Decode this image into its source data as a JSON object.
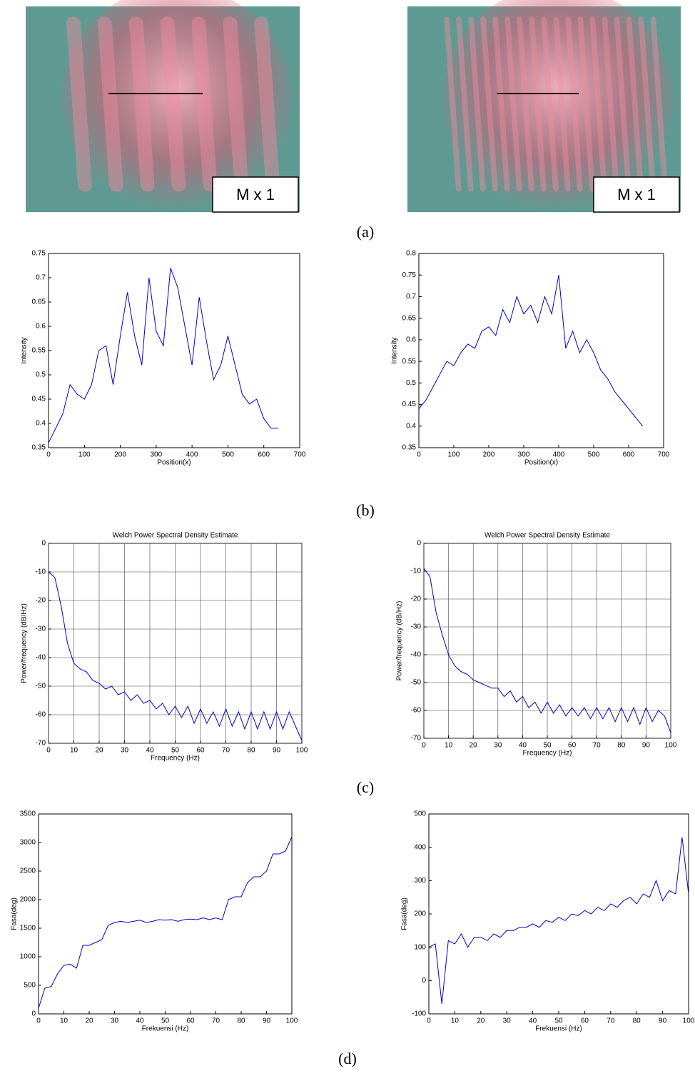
{
  "figure": {
    "panels": [
      {
        "label": "M x 1"
      },
      {
        "label": "M x 1"
      }
    ],
    "captions": [
      "(a)",
      "(b)",
      "(c)",
      "(d)"
    ]
  },
  "chart_data": [
    {
      "type": "line",
      "x_label": "Position(x)",
      "y_label": "Intensity",
      "color": "#0000cc",
      "x": [
        0,
        20,
        40,
        60,
        80,
        100,
        120,
        140,
        160,
        180,
        200,
        220,
        240,
        260,
        280,
        300,
        320,
        340,
        360,
        380,
        400,
        420,
        440,
        460,
        480,
        500,
        520,
        540,
        560,
        580,
        600,
        620,
        640
      ],
      "values": [
        0.36,
        0.39,
        0.42,
        0.48,
        0.46,
        0.45,
        0.48,
        0.55,
        0.56,
        0.48,
        0.58,
        0.67,
        0.58,
        0.52,
        0.7,
        0.59,
        0.56,
        0.72,
        0.68,
        0.6,
        0.52,
        0.66,
        0.57,
        0.49,
        0.52,
        0.58,
        0.52,
        0.46,
        0.44,
        0.45,
        0.41,
        0.39,
        0.39
      ],
      "xlim": [
        0,
        700
      ],
      "xticks": [
        0,
        100,
        200,
        300,
        400,
        500,
        600,
        700
      ],
      "ylim": [
        0.35,
        0.75
      ],
      "yticks": [
        0.35,
        0.4,
        0.45,
        0.5,
        0.55,
        0.6,
        0.65,
        0.7,
        0.75
      ],
      "grid": false
    },
    {
      "type": "line",
      "x_label": "Position(x)",
      "y_label": "Intensity",
      "color": "#0000cc",
      "x": [
        0,
        20,
        40,
        60,
        80,
        100,
        120,
        140,
        160,
        180,
        200,
        220,
        240,
        260,
        280,
        300,
        320,
        340,
        360,
        380,
        400,
        420,
        440,
        460,
        480,
        500,
        520,
        540,
        560,
        580,
        600,
        620,
        640
      ],
      "values": [
        0.44,
        0.46,
        0.49,
        0.52,
        0.55,
        0.54,
        0.57,
        0.59,
        0.58,
        0.62,
        0.63,
        0.61,
        0.67,
        0.64,
        0.7,
        0.66,
        0.68,
        0.64,
        0.7,
        0.66,
        0.75,
        0.58,
        0.62,
        0.57,
        0.6,
        0.57,
        0.53,
        0.51,
        0.48,
        0.46,
        0.44,
        0.42,
        0.4
      ],
      "xlim": [
        0,
        700
      ],
      "xticks": [
        0,
        100,
        200,
        300,
        400,
        500,
        600,
        700
      ],
      "ylim": [
        0.35,
        0.8
      ],
      "yticks": [
        0.35,
        0.4,
        0.45,
        0.5,
        0.55,
        0.6,
        0.65,
        0.7,
        0.75,
        0.8
      ],
      "grid": false
    },
    {
      "type": "line",
      "title": "Welch Power Spectral Density Estimate",
      "x_label": "Frequency (Hz)",
      "y_label": "Power/frequency (dB/Hz)",
      "color": "#0000cc",
      "x": [
        0,
        2.5,
        5,
        7.5,
        10,
        12.5,
        15,
        17.5,
        20,
        22.5,
        25,
        27.5,
        30,
        32.5,
        35,
        37.5,
        40,
        42.5,
        45,
        47.5,
        50,
        52.5,
        55,
        57.5,
        60,
        62.5,
        65,
        67.5,
        70,
        72.5,
        75,
        77.5,
        80,
        82.5,
        85,
        87.5,
        90,
        92.5,
        95,
        97.5,
        100
      ],
      "values": [
        -10,
        -12,
        -22,
        -35,
        -42,
        -44,
        -45,
        -48,
        -49,
        -51,
        -50,
        -53,
        -52,
        -55,
        -53,
        -56,
        -55,
        -58,
        -56,
        -60,
        -57,
        -61,
        -57,
        -63,
        -58,
        -63,
        -59,
        -64,
        -58,
        -64,
        -59,
        -65,
        -59,
        -65,
        -59,
        -65,
        -59,
        -65,
        -59,
        -64,
        -69
      ],
      "xlim": [
        0,
        100
      ],
      "xticks": [
        0,
        10,
        20,
        30,
        40,
        50,
        60,
        70,
        80,
        90,
        100
      ],
      "ylim": [
        -70,
        0
      ],
      "yticks": [
        -70,
        -60,
        -50,
        -40,
        -30,
        -20,
        -10,
        0
      ],
      "grid": true
    },
    {
      "type": "line",
      "title": "Welch Power Spectral Density Estimate",
      "x_label": "Frequency (Hz)",
      "y_label": "Power/frequency (dB/Hz)",
      "color": "#0000cc",
      "x": [
        0,
        2.5,
        5,
        7.5,
        10,
        12.5,
        15,
        17.5,
        20,
        22.5,
        25,
        27.5,
        30,
        32.5,
        35,
        37.5,
        40,
        42.5,
        45,
        47.5,
        50,
        52.5,
        55,
        57.5,
        60,
        62.5,
        65,
        67.5,
        70,
        72.5,
        75,
        77.5,
        80,
        82.5,
        85,
        87.5,
        90,
        92.5,
        95,
        97.5,
        100
      ],
      "values": [
        -9,
        -12,
        -25,
        -33,
        -40,
        -44,
        -46,
        -47,
        -49,
        -50,
        -51,
        -52,
        -52,
        -55,
        -53,
        -57,
        -55,
        -59,
        -57,
        -61,
        -57,
        -61,
        -58,
        -62,
        -59,
        -62,
        -59,
        -63,
        -59,
        -63,
        -59,
        -64,
        -59,
        -64,
        -59,
        -65,
        -59,
        -64,
        -60,
        -62,
        -68
      ],
      "xlim": [
        0,
        100
      ],
      "xticks": [
        0,
        10,
        20,
        30,
        40,
        50,
        60,
        70,
        80,
        90,
        100
      ],
      "ylim": [
        -70,
        0
      ],
      "yticks": [
        -70,
        -60,
        -50,
        -40,
        -30,
        -20,
        -10,
        0
      ],
      "grid": true
    },
    {
      "type": "line",
      "x_label": "Frekuensi (Hz)",
      "y_label": "Fasa(deg)",
      "color": "#0000cc",
      "x": [
        0,
        2.5,
        5,
        7.5,
        10,
        12.5,
        15,
        17.5,
        20,
        22.5,
        25,
        27.5,
        30,
        32.5,
        35,
        37.5,
        40,
        42.5,
        45,
        47.5,
        50,
        52.5,
        55,
        57.5,
        60,
        62.5,
        65,
        67.5,
        70,
        72.5,
        75,
        77.5,
        80,
        82.5,
        85,
        87.5,
        90,
        92.5,
        95,
        97.5,
        100
      ],
      "values": [
        100,
        450,
        480,
        700,
        850,
        870,
        800,
        1200,
        1200,
        1250,
        1300,
        1550,
        1600,
        1620,
        1600,
        1620,
        1640,
        1600,
        1620,
        1650,
        1640,
        1650,
        1620,
        1650,
        1660,
        1650,
        1680,
        1650,
        1680,
        1650,
        2000,
        2050,
        2050,
        2300,
        2400,
        2400,
        2500,
        2800,
        2800,
        2850,
        3100
      ],
      "xlim": [
        0,
        100
      ],
      "xticks": [
        0,
        10,
        20,
        30,
        40,
        50,
        60,
        70,
        80,
        90,
        100
      ],
      "ylim": [
        0,
        3500
      ],
      "yticks": [
        0,
        500,
        1000,
        1500,
        2000,
        2500,
        3000,
        3500
      ],
      "grid": false
    },
    {
      "type": "line",
      "x_label": "Frekuensi (Hz)",
      "y_label": "Fasa(deg)",
      "color": "#0000cc",
      "x": [
        0,
        2.5,
        5,
        7.5,
        10,
        12.5,
        15,
        17.5,
        20,
        22.5,
        25,
        27.5,
        30,
        32.5,
        35,
        37.5,
        40,
        42.5,
        45,
        47.5,
        50,
        52.5,
        55,
        57.5,
        60,
        62.5,
        65,
        67.5,
        70,
        72.5,
        75,
        77.5,
        80,
        82.5,
        85,
        87.5,
        90,
        92.5,
        95,
        97.5,
        100
      ],
      "values": [
        100,
        110,
        -70,
        120,
        110,
        140,
        100,
        130,
        130,
        120,
        140,
        130,
        150,
        150,
        160,
        160,
        170,
        160,
        180,
        175,
        190,
        180,
        200,
        195,
        210,
        200,
        220,
        210,
        230,
        220,
        240,
        250,
        230,
        260,
        250,
        300,
        240,
        270,
        260,
        430,
        260
      ],
      "xlim": [
        0,
        100
      ],
      "xticks": [
        0,
        10,
        20,
        30,
        40,
        50,
        60,
        70,
        80,
        90,
        100
      ],
      "ylim": [
        -100,
        500
      ],
      "yticks": [
        -100,
        0,
        100,
        200,
        300,
        400,
        500
      ],
      "grid": false
    }
  ]
}
